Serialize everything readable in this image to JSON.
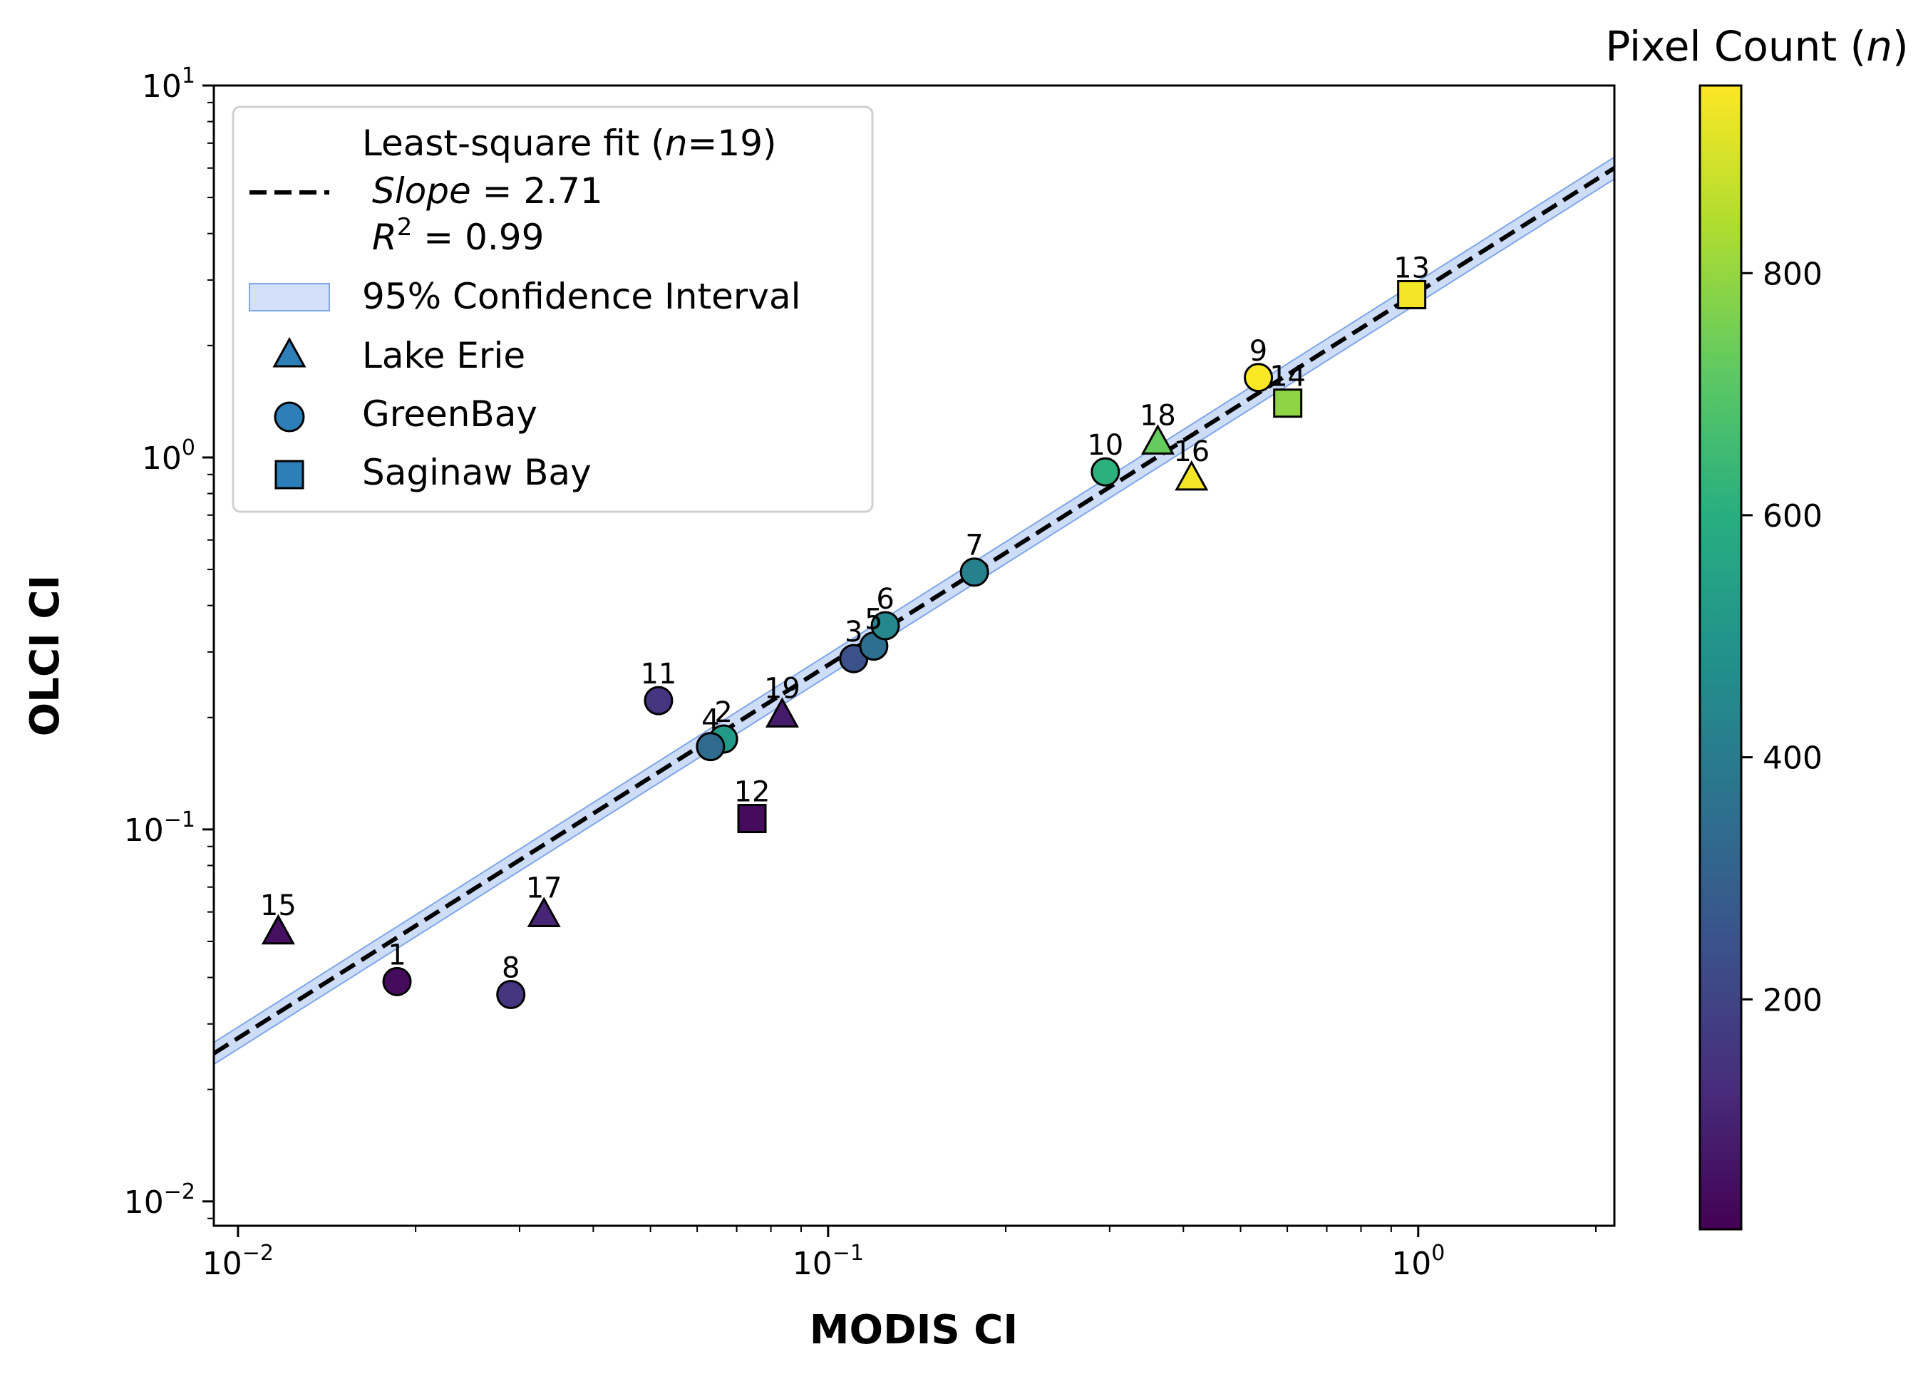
{
  "chart_data": {
    "type": "scatter",
    "xscale": "log",
    "yscale": "log",
    "xlabel": "MODIS CI",
    "ylabel": "OLCI CI",
    "xlim": [
      0.0091,
      2.15
    ],
    "ylim": [
      0.0086,
      10.0
    ],
    "x_ticks": [
      {
        "value": 0.01,
        "base": "10",
        "exp": "−2"
      },
      {
        "value": 0.1,
        "base": "10",
        "exp": "−1"
      },
      {
        "value": 1,
        "base": "10",
        "exp": "0"
      }
    ],
    "y_ticks": [
      {
        "value": 0.01,
        "base": "10",
        "exp": "−2"
      },
      {
        "value": 0.1,
        "base": "10",
        "exp": "−1"
      },
      {
        "value": 1,
        "base": "10",
        "exp": "0"
      },
      {
        "value": 10,
        "base": "10",
        "exp": "1"
      }
    ],
    "fit": {
      "legend_line1_prefix": "Least-square fit (",
      "legend_line1_n": "n",
      "legend_line1_suffix": "=19)",
      "slope_label": "Slope",
      "slope_value_text": " = 2.71",
      "r2_label": "R",
      "r2_sup": "2",
      "r2_value_text": " = 0.99",
      "x_range": [
        0.0091,
        2.15
      ],
      "y_range": [
        0.025,
        6.0
      ],
      "ci_label": "95% Confidence Interval",
      "ci_factor": 1.07
    },
    "series": [
      {
        "name": "Lake Erie",
        "marker": "triangle"
      },
      {
        "name": "GreenBay",
        "marker": "circle"
      },
      {
        "name": "Saginaw Bay",
        "marker": "square"
      }
    ],
    "points": [
      {
        "id": "1",
        "x": 0.0186,
        "y": 0.039,
        "n": 40,
        "marker": "circle"
      },
      {
        "id": "2",
        "x": 0.0665,
        "y": 0.175,
        "n": 520,
        "marker": "circle"
      },
      {
        "id": "3",
        "x": 0.1105,
        "y": 0.288,
        "n": 240,
        "marker": "circle"
      },
      {
        "id": "4",
        "x": 0.0632,
        "y": 0.167,
        "n": 340,
        "marker": "circle"
      },
      {
        "id": "5",
        "x": 0.1195,
        "y": 0.311,
        "n": 350,
        "marker": "circle"
      },
      {
        "id": "6",
        "x": 0.125,
        "y": 0.353,
        "n": 450,
        "marker": "circle"
      },
      {
        "id": "7",
        "x": 0.177,
        "y": 0.492,
        "n": 420,
        "marker": "circle"
      },
      {
        "id": "8",
        "x": 0.029,
        "y": 0.036,
        "n": 150,
        "marker": "circle"
      },
      {
        "id": "9",
        "x": 0.536,
        "y": 1.64,
        "n": 950,
        "marker": "circle"
      },
      {
        "id": "10",
        "x": 0.295,
        "y": 0.915,
        "n": 610,
        "marker": "circle"
      },
      {
        "id": "11",
        "x": 0.0516,
        "y": 0.222,
        "n": 150,
        "marker": "circle"
      },
      {
        "id": "12",
        "x": 0.0743,
        "y": 0.107,
        "n": 40,
        "marker": "square"
      },
      {
        "id": "13",
        "x": 0.975,
        "y": 2.74,
        "n": 940,
        "marker": "square"
      },
      {
        "id": "14",
        "x": 0.601,
        "y": 1.4,
        "n": 790,
        "marker": "square"
      },
      {
        "id": "15",
        "x": 0.0117,
        "y": 0.053,
        "n": 50,
        "marker": "triangle"
      },
      {
        "id": "16",
        "x": 0.413,
        "y": 0.88,
        "n": 940,
        "marker": "triangle"
      },
      {
        "id": "17",
        "x": 0.033,
        "y": 0.059,
        "n": 110,
        "marker": "triangle"
      },
      {
        "id": "18",
        "x": 0.362,
        "y": 1.1,
        "n": 730,
        "marker": "triangle"
      },
      {
        "id": "19",
        "x": 0.0836,
        "y": 0.203,
        "n": 80,
        "marker": "triangle"
      }
    ],
    "colorbar": {
      "title_prefix": "Pixel Count (",
      "title_n": "n",
      "title_suffix": ")",
      "min": 10,
      "max": 955,
      "ticks": [
        200,
        400,
        600,
        800
      ],
      "colormap": "viridis"
    }
  }
}
